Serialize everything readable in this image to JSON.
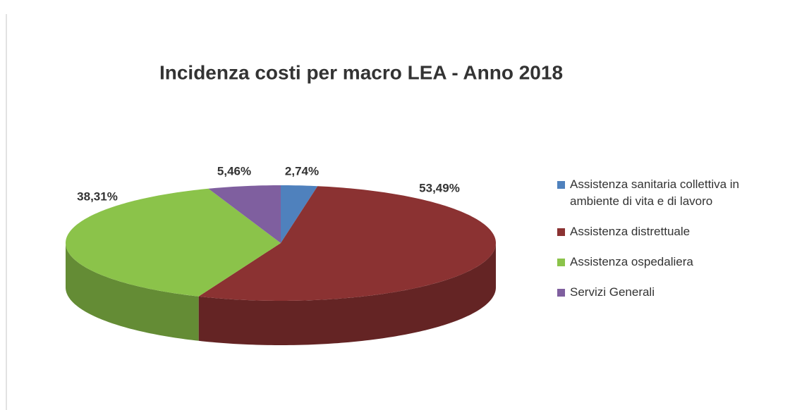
{
  "chart_data": {
    "type": "pie3d",
    "title": "Incidenza costi per macro LEA - Anno 2018",
    "categories": [
      "Assistenza sanitaria collettiva in ambiente di vita e di lavoro",
      "Assistenza distrettuale",
      "Assistenza ospedaliera",
      "Servizi Generali"
    ],
    "values": [
      2.74,
      53.49,
      38.31,
      5.46
    ],
    "value_labels": [
      "2,74%",
      "53,49%",
      "38,31%",
      "5,46%"
    ],
    "colors": [
      "#4f81bd",
      "#8b3232",
      "#8bc34a",
      "#7f5f9f"
    ],
    "legend": "right"
  }
}
